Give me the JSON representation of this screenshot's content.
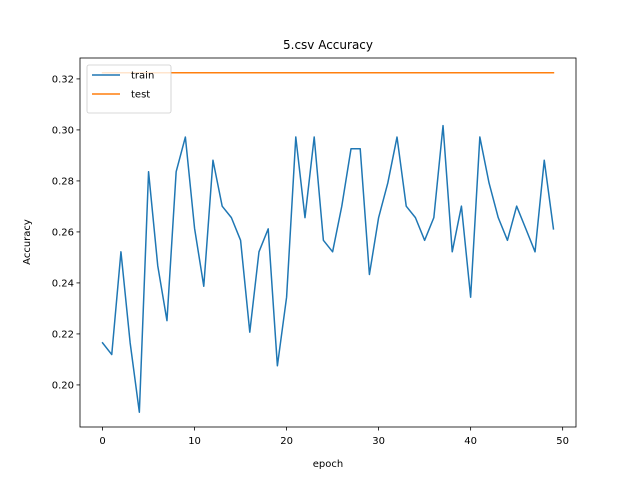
{
  "chart_data": {
    "type": "line",
    "title": "5.csv Accuracy",
    "xlabel": "epoch",
    "ylabel": "Accuracy",
    "xlim": [
      -2.45,
      51.45
    ],
    "ylim": [
      0.1835,
      0.3282
    ],
    "xticks": [
      0,
      10,
      20,
      30,
      40,
      50
    ],
    "yticks": [
      0.2,
      0.22,
      0.24,
      0.26,
      0.28,
      0.3,
      0.32
    ],
    "ytick_labels": [
      "0.20",
      "0.22",
      "0.24",
      "0.26",
      "0.28",
      "0.30",
      "0.32"
    ],
    "grid": false,
    "legend": "top-left",
    "series": [
      {
        "name": "train",
        "color": "#1f77b4",
        "x": [
          0,
          1,
          2,
          3,
          4,
          5,
          6,
          7,
          8,
          9,
          10,
          11,
          12,
          13,
          14,
          15,
          16,
          17,
          18,
          19,
          20,
          21,
          22,
          23,
          24,
          25,
          26,
          27,
          28,
          29,
          30,
          31,
          32,
          33,
          34,
          35,
          36,
          37,
          38,
          39,
          40,
          41,
          42,
          43,
          44,
          45,
          46,
          47,
          48,
          49
        ],
        "values": [
          0.2165,
          0.2119,
          0.2522,
          0.2165,
          0.1893,
          0.2836,
          0.2467,
          0.2252,
          0.2836,
          0.2972,
          0.2614,
          0.2387,
          0.2881,
          0.2701,
          0.2656,
          0.2567,
          0.2207,
          0.2522,
          0.2612,
          0.2075,
          0.2344,
          0.2972,
          0.2656,
          0.2972,
          0.2567,
          0.2522,
          0.2701,
          0.2926,
          0.2926,
          0.2433,
          0.2656,
          0.2792,
          0.2972,
          0.2701,
          0.2656,
          0.2567,
          0.2656,
          0.3017,
          0.2522,
          0.2701,
          0.2344,
          0.2972,
          0.2792,
          0.2656,
          0.2567,
          0.2701,
          0.2612,
          0.2522,
          0.2881,
          0.2612
        ]
      },
      {
        "name": "test",
        "color": "#ff7f0e",
        "x": [
          0,
          49
        ],
        "values": [
          0.3224,
          0.3224
        ]
      }
    ]
  }
}
